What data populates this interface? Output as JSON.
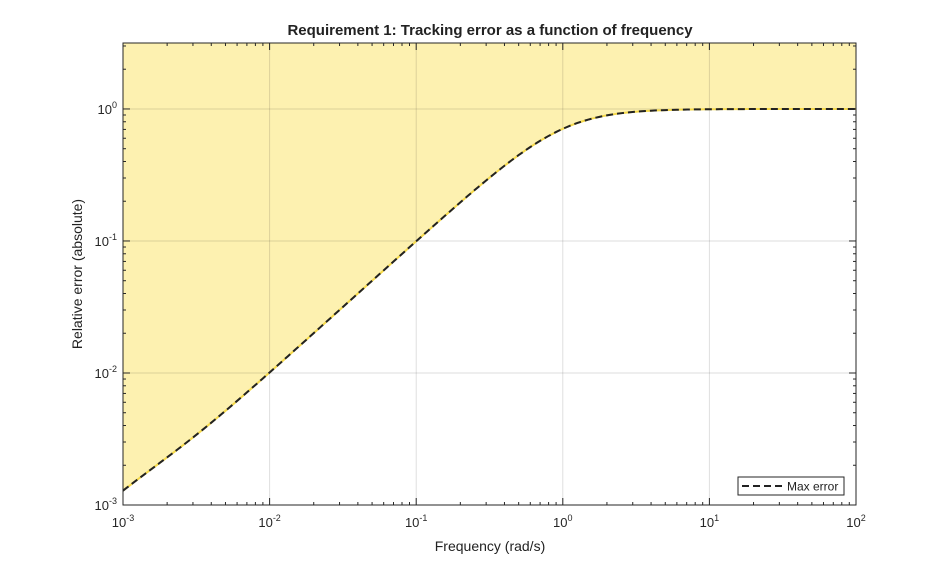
{
  "chart_data": {
    "type": "line",
    "title": "Requirement 1: Tracking error as a function of frequency",
    "xlabel": "Frequency (rad/s)",
    "ylabel": "Relative error (absolute)",
    "xscale": "log",
    "yscale": "log",
    "xlim": [
      0.001,
      100
    ],
    "ylim": [
      0.001,
      3.16
    ],
    "grid": true,
    "legend_position": "bottom-right",
    "x_ticks": [
      {
        "base": "10",
        "exp": "-3",
        "value": 0.001
      },
      {
        "base": "10",
        "exp": "-2",
        "value": 0.01
      },
      {
        "base": "10",
        "exp": "-1",
        "value": 0.1
      },
      {
        "base": "10",
        "exp": "0",
        "value": 1
      },
      {
        "base": "10",
        "exp": "1",
        "value": 10
      },
      {
        "base": "10",
        "exp": "2",
        "value": 100
      }
    ],
    "y_ticks": [
      {
        "base": "10",
        "exp": "-3",
        "value": 0.001
      },
      {
        "base": "10",
        "exp": "-2",
        "value": 0.01
      },
      {
        "base": "10",
        "exp": "-1",
        "value": 0.1
      },
      {
        "base": "10",
        "exp": "0",
        "value": 1
      }
    ],
    "series": [
      {
        "name": "Max error",
        "style": "dashed",
        "color": "#222222",
        "x": [
          0.001,
          0.002,
          0.005,
          0.01,
          0.02,
          0.05,
          0.1,
          0.2,
          0.5,
          1,
          2,
          5,
          10,
          20,
          50,
          100
        ],
        "y": [
          0.00141,
          0.00224,
          0.005,
          0.01,
          0.02,
          0.05,
          0.1,
          0.196,
          0.447,
          0.707,
          0.894,
          0.981,
          0.995,
          0.999,
          1.0,
          1.0
        ]
      }
    ],
    "shaded_region": {
      "description_of": "violation",
      "color": "#fdf1b0",
      "edge_color": "#f5d94a"
    }
  }
}
